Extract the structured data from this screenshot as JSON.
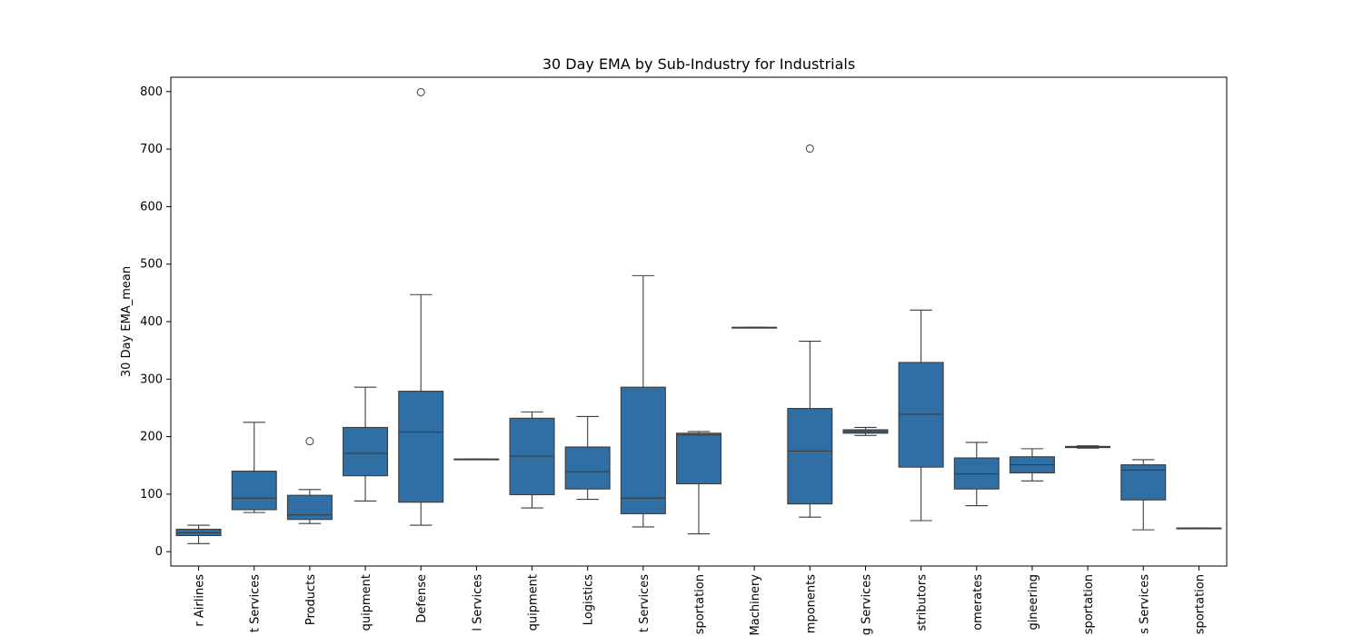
{
  "chart_data": {
    "type": "box",
    "title": "30 Day EMA by Sub-Industry for Industrials",
    "xlabel": "",
    "ylabel": "30 Day EMA_mean",
    "ylim": [
      -25,
      825
    ],
    "yticks": [
      0,
      100,
      200,
      300,
      400,
      500,
      600,
      700,
      800
    ],
    "grid": false,
    "legend": "none",
    "colors": {
      "box_fill": "#2f6fa4",
      "line": "#3d3d3d",
      "frame": "#000000"
    },
    "tick_labels_visible": [
      "r Airlines",
      "t Services",
      "Products",
      "quipment",
      "Defense",
      "l Services",
      "quipment",
      "Logistics",
      "t Services",
      "sportation",
      "Machinery",
      "mponents",
      "g Services",
      "stributors",
      "omerates",
      "gineering",
      "sportation",
      "s Services",
      "sportation"
    ],
    "boxes": [
      {
        "whislo": 14,
        "q1": 28,
        "med": 33,
        "q3": 39,
        "whishi": 46,
        "fliers": []
      },
      {
        "whislo": 68,
        "q1": 73,
        "med": 93,
        "q3": 140,
        "whishi": 225,
        "fliers": []
      },
      {
        "whislo": 49,
        "q1": 56,
        "med": 64,
        "q3": 98,
        "whishi": 108,
        "fliers": [
          192
        ]
      },
      {
        "whislo": 88,
        "q1": 132,
        "med": 171,
        "q3": 216,
        "whishi": 286,
        "fliers": []
      },
      {
        "whislo": 46,
        "q1": 86,
        "med": 208,
        "q3": 279,
        "whishi": 447,
        "fliers": [
          799
        ]
      },
      {
        "whislo": 161,
        "q1": 161,
        "med": 161,
        "q3": 161,
        "whishi": 161,
        "fliers": []
      },
      {
        "whislo": 76,
        "q1": 99,
        "med": 166,
        "q3": 232,
        "whishi": 243,
        "fliers": []
      },
      {
        "whislo": 91,
        "q1": 109,
        "med": 139,
        "q3": 182,
        "whishi": 235,
        "fliers": []
      },
      {
        "whislo": 43,
        "q1": 66,
        "med": 93,
        "q3": 286,
        "whishi": 480,
        "fliers": []
      },
      {
        "whislo": 31,
        "q1": 118,
        "med": 203,
        "q3": 206,
        "whishi": 209,
        "fliers": []
      },
      {
        "whislo": 390,
        "q1": 390,
        "med": 390,
        "q3": 390,
        "whishi": 390,
        "fliers": []
      },
      {
        "whislo": 60,
        "q1": 83,
        "med": 175,
        "q3": 249,
        "whishi": 366,
        "fliers": [
          701
        ]
      },
      {
        "whislo": 202,
        "q1": 206,
        "med": 209,
        "q3": 212,
        "whishi": 216,
        "fliers": []
      },
      {
        "whislo": 54,
        "q1": 147,
        "med": 239,
        "q3": 329,
        "whishi": 420,
        "fliers": []
      },
      {
        "whislo": 80,
        "q1": 109,
        "med": 135,
        "q3": 163,
        "whishi": 190,
        "fliers": []
      },
      {
        "whislo": 123,
        "q1": 137,
        "med": 151,
        "q3": 165,
        "whishi": 179,
        "fliers": []
      },
      {
        "whislo": 180,
        "q1": 181,
        "med": 182,
        "q3": 183,
        "whishi": 184,
        "fliers": []
      },
      {
        "whislo": 38,
        "q1": 90,
        "med": 142,
        "q3": 151,
        "whishi": 160,
        "fliers": []
      },
      {
        "whislo": 41,
        "q1": 41,
        "med": 41,
        "q3": 41,
        "whishi": 41,
        "fliers": []
      }
    ]
  }
}
